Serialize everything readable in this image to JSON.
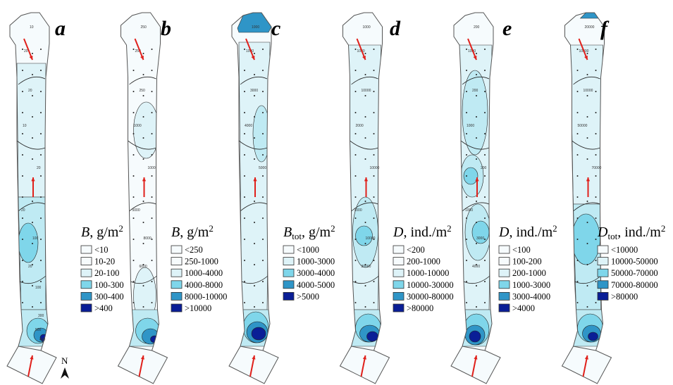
{
  "colors": {
    "c0": "#f6fbfd",
    "c1": "#def3f8",
    "c2": "#bfeaf3",
    "c3": "#7fd6ea",
    "c4": "#2f95c7",
    "c5": "#0a1e96",
    "arrow": "#e0201b"
  },
  "north_label": "N",
  "panels": [
    {
      "letter": "a",
      "title_symbol": "B",
      "title_sub": "",
      "title_unit": ", g/m",
      "title_sup": "2",
      "legend": [
        "<10",
        "10-20",
        "20-100",
        "100-300",
        "300-400",
        ">400"
      ],
      "contour_labels": [
        "10",
        "20",
        "20",
        "10",
        "20",
        "20",
        "100",
        "20",
        "100",
        "300",
        "500",
        "400"
      ]
    },
    {
      "letter": "b",
      "title_symbol": "B",
      "title_sub": "",
      "title_unit": ", g/m",
      "title_sup": "2",
      "legend": [
        "<250",
        "250-1000",
        "1000-4000",
        "4000-8000",
        "8000-10000",
        ">10000"
      ],
      "contour_labels": [
        "250",
        "250",
        "250",
        "1000",
        "1000",
        "5000",
        "8000",
        "6000"
      ]
    },
    {
      "letter": "c",
      "title_symbol": "B",
      "title_sub": "tot",
      "title_unit": ", g/m",
      "title_sup": "2",
      "legend": [
        "<1000",
        "1000-3000",
        "3000-4000",
        "4000-5000",
        ">5000"
      ],
      "contour_labels": [
        "1000",
        "1000",
        "3000",
        "4000",
        "5000"
      ]
    },
    {
      "letter": "d",
      "title_symbol": "D",
      "title_sub": "",
      "title_unit": ",  ind./m",
      "title_sup": "2",
      "legend": [
        "<200",
        "200-1000",
        "1000-10000",
        "10000-30000",
        "30000-80000",
        ">80000"
      ],
      "contour_labels": [
        "1000",
        "1000",
        "10000",
        "2000",
        "10000",
        "1000",
        "10000",
        "30000"
      ]
    },
    {
      "letter": "e",
      "title_symbol": "D",
      "title_sub": "",
      "title_unit": ",  ind./m",
      "title_sup": "2",
      "legend": [
        "<100",
        "100-200",
        "200-1000",
        "1000-3000",
        "3000-4000",
        ">4000"
      ],
      "contour_labels": [
        "200",
        "1000",
        "200",
        "1000",
        "200",
        "1000",
        "3000",
        "4000"
      ]
    },
    {
      "letter": "f",
      "title_symbol": "D",
      "title_sub": "tot",
      "title_unit": ",  ind./m",
      "title_sup": "2",
      "legend": [
        "<10000",
        "10000-50000",
        "50000-70000",
        "70000-80000",
        ">80000"
      ],
      "contour_labels": [
        "20000",
        "10000",
        "10000",
        "50000",
        "70000"
      ]
    }
  ]
}
